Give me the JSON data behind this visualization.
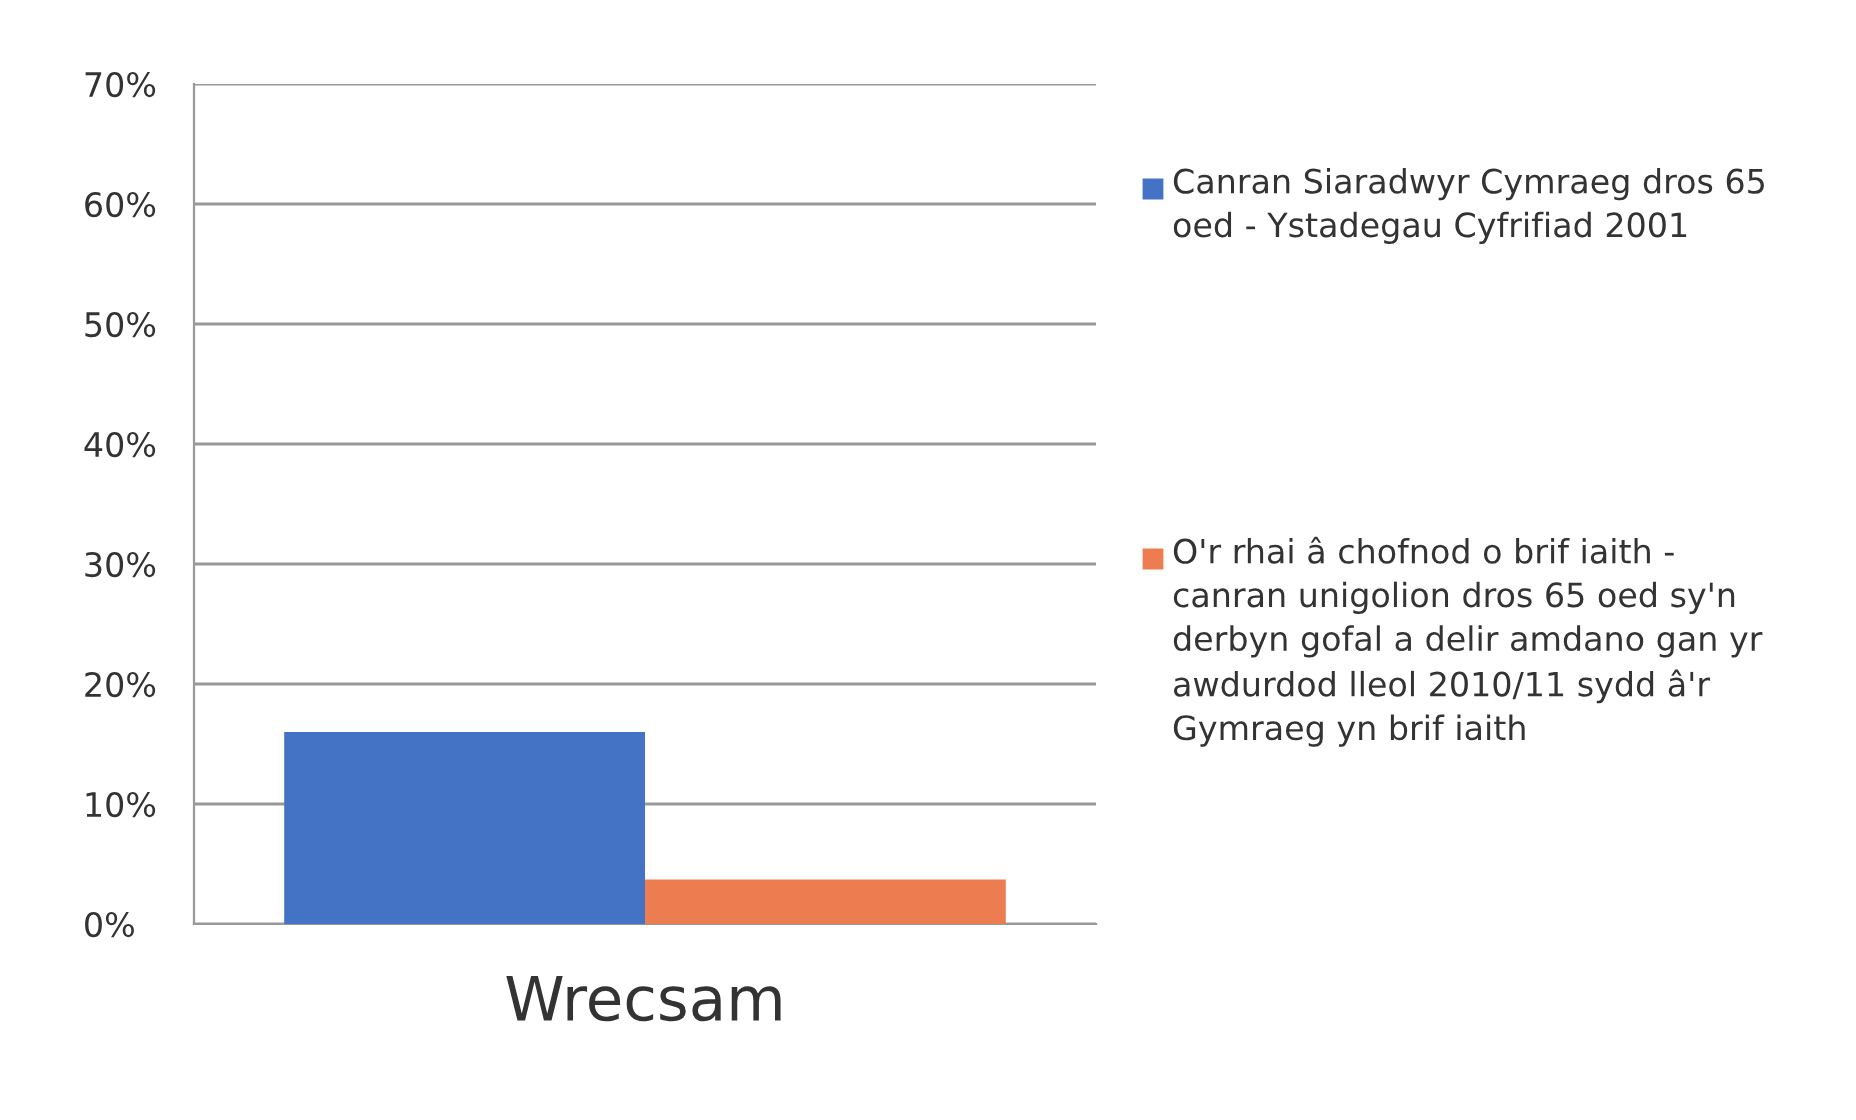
{
  "chart_data": {
    "type": "bar",
    "categories": [
      "Wrecsam"
    ],
    "series": [
      {
        "name": "Canran Siaradwyr Cymraeg dros 65 oed - Ystadegau Cyfrifiad 2001",
        "color": "#4472c4",
        "values": [
          16
        ]
      },
      {
        "name": "O'r rhai â chofnod o brif iaith - canran unigolion dros 65 oed sy'n derbyn gofal a delir amdano gan yr awdurdod lleol 2010/11 sydd â'r Gymraeg yn brif iaith",
        "color": "#ed7d50",
        "values": [
          3.7
        ]
      }
    ],
    "ylim": [
      0,
      70
    ],
    "yticks": [
      {
        "value": 0,
        "label": "0%"
      },
      {
        "value": 10,
        "label": "10%"
      },
      {
        "value": 20,
        "label": "20%"
      },
      {
        "value": 30,
        "label": "30%"
      },
      {
        "value": 40,
        "label": "40%"
      },
      {
        "value": 50,
        "label": "50%"
      },
      {
        "value": 60,
        "label": "60%"
      },
      {
        "value": 70,
        "label": "70%"
      }
    ],
    "grid": "y",
    "legend": "right"
  }
}
